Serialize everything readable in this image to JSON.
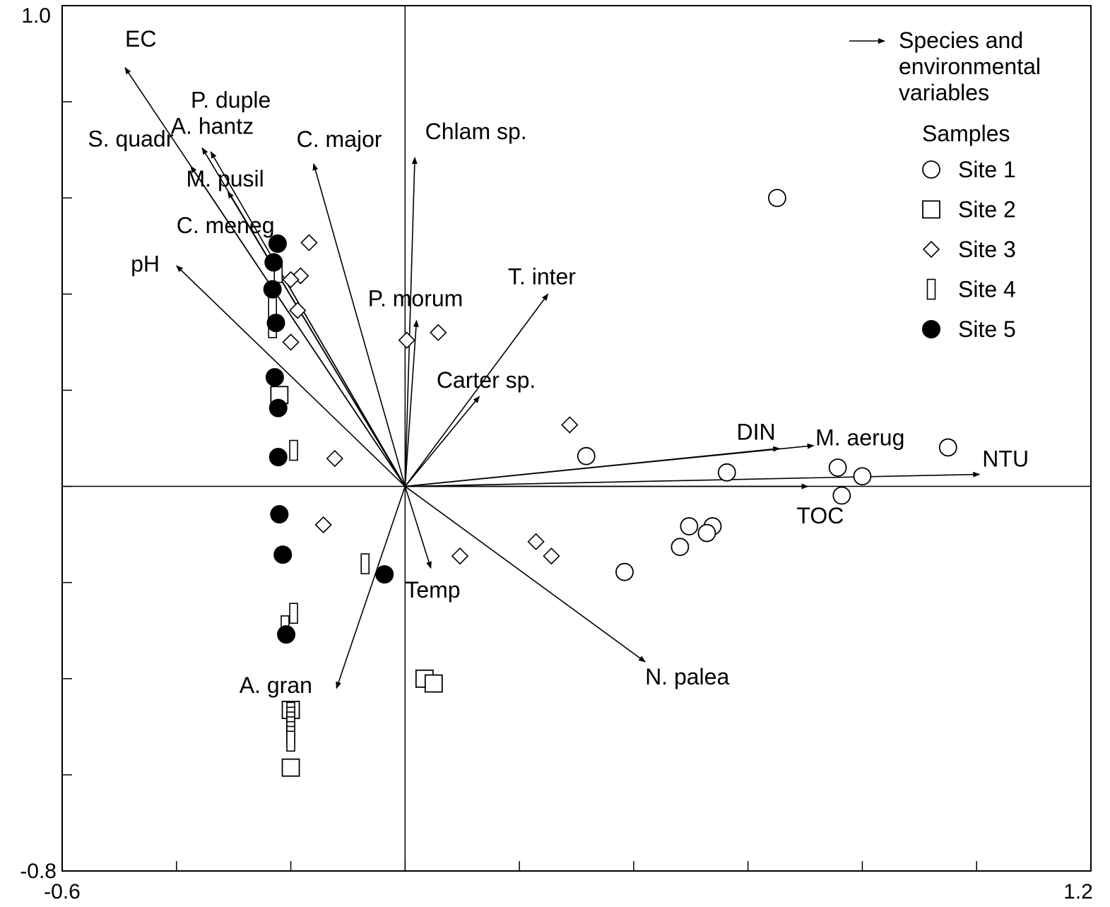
{
  "chart_data": {
    "type": "scatter",
    "title": "",
    "xlabel": "",
    "ylabel": "",
    "xlim": [
      -0.6,
      1.2
    ],
    "ylim": [
      -0.8,
      1.0
    ],
    "x_tick_labels": [
      "-0.6",
      "1.2"
    ],
    "y_tick_labels": [
      "1.0",
      "-0.8"
    ],
    "x_ticks": [
      -0.6,
      -0.4,
      -0.2,
      0.0,
      0.2,
      0.4,
      0.6,
      0.8,
      1.0,
      1.2
    ],
    "y_ticks": [
      1.0,
      0.8,
      0.6,
      0.4,
      0.2,
      0.0,
      -0.2,
      -0.4,
      -0.6,
      -0.8
    ],
    "grid": false,
    "legend_position": "top-right",
    "legend": {
      "arrow_label": [
        "Species and",
        "environmental",
        "variables"
      ],
      "samples_title": "Samples",
      "entries": [
        {
          "label": "Site 1",
          "marker": "circle"
        },
        {
          "label": "Site 2",
          "marker": "square"
        },
        {
          "label": "Site 3",
          "marker": "diamond"
        },
        {
          "label": "Site 4",
          "marker": "rect"
        },
        {
          "label": "Site 5",
          "marker": "filled-circle"
        }
      ]
    },
    "arrows": [
      {
        "label": "EC",
        "x": -0.49,
        "y": 0.871
      },
      {
        "label": "P. duple",
        "x": -0.355,
        "y": 0.704
      },
      {
        "label": "A. hantz",
        "x": -0.34,
        "y": 0.696
      },
      {
        "label": "S. quadr",
        "x": -0.375,
        "y": 0.666
      },
      {
        "label": "M. pusil",
        "x": -0.31,
        "y": 0.613
      },
      {
        "label": "C. meneg",
        "x": -0.235,
        "y": 0.481
      },
      {
        "label": "pH",
        "x": -0.4,
        "y": 0.459
      },
      {
        "label": "C. major",
        "x": -0.16,
        "y": 0.671
      },
      {
        "label": "Chlam sp.",
        "x": 0.017,
        "y": 0.684
      },
      {
        "label": "P. morum",
        "x": 0.02,
        "y": 0.345
      },
      {
        "label": "T. inter",
        "x": 0.25,
        "y": 0.4
      },
      {
        "label": "Carter sp.",
        "x": 0.13,
        "y": 0.187
      },
      {
        "label": "DIN",
        "x": 0.655,
        "y": 0.079
      },
      {
        "label": "M. aerug",
        "x": 0.715,
        "y": 0.085
      },
      {
        "label": "NTU",
        "x": 1.005,
        "y": 0.025
      },
      {
        "label": "TOC",
        "x": 0.705,
        "y": 0.0
      },
      {
        "label": "Temp",
        "x": 0.045,
        "y": -0.17
      },
      {
        "label": "N. palea",
        "x": 0.42,
        "y": -0.365
      },
      {
        "label": "A. gran",
        "x": -0.12,
        "y": -0.42
      }
    ],
    "series": [
      {
        "name": "Site 1",
        "marker": "circle",
        "points": [
          [
            0.651,
            0.6
          ],
          [
            0.317,
            0.063
          ],
          [
            0.563,
            0.029
          ],
          [
            0.757,
            0.039
          ],
          [
            0.8,
            0.021
          ],
          [
            0.764,
            -0.019
          ],
          [
            0.95,
            0.081
          ],
          [
            0.497,
            -0.083
          ],
          [
            0.538,
            -0.083
          ],
          [
            0.528,
            -0.097
          ],
          [
            0.481,
            -0.126
          ],
          [
            0.384,
            -0.178
          ]
        ]
      },
      {
        "name": "Site 2",
        "marker": "square",
        "points": [
          [
            -0.22,
            0.19
          ],
          [
            0.034,
            -0.4
          ],
          [
            0.05,
            -0.41
          ],
          [
            -0.2,
            -0.465
          ],
          [
            -0.2,
            -0.585
          ]
        ]
      },
      {
        "name": "Site 3",
        "marker": "diamond",
        "points": [
          [
            -0.168,
            0.507
          ],
          [
            -0.183,
            0.438
          ],
          [
            -0.2,
            0.43
          ],
          [
            -0.188,
            0.366
          ],
          [
            -0.2,
            0.3
          ],
          [
            0.003,
            0.304
          ],
          [
            0.058,
            0.32
          ],
          [
            0.288,
            0.128
          ],
          [
            -0.123,
            0.058
          ],
          [
            -0.143,
            -0.08
          ],
          [
            0.096,
            -0.145
          ],
          [
            0.229,
            -0.115
          ],
          [
            0.256,
            -0.145
          ]
        ]
      },
      {
        "name": "Site 4",
        "marker": "rect",
        "points": [
          [
            -0.222,
            0.445
          ],
          [
            -0.232,
            0.373
          ],
          [
            -0.232,
            0.33
          ],
          [
            -0.195,
            0.075
          ],
          [
            -0.07,
            -0.161
          ],
          [
            -0.195,
            -0.264
          ],
          [
            -0.21,
            -0.29
          ],
          [
            -0.2,
            -0.47
          ],
          [
            -0.2,
            -0.48
          ],
          [
            -0.2,
            -0.49
          ],
          [
            -0.2,
            -0.5
          ],
          [
            -0.2,
            -0.51
          ],
          [
            -0.2,
            -0.52
          ],
          [
            -0.2,
            -0.53
          ]
        ]
      },
      {
        "name": "Site 5",
        "marker": "filled-circle",
        "points": [
          [
            -0.223,
            0.505
          ],
          [
            -0.23,
            0.466
          ],
          [
            -0.232,
            0.41
          ],
          [
            -0.226,
            0.34
          ],
          [
            -0.228,
            0.227
          ],
          [
            -0.222,
            0.163
          ],
          [
            -0.222,
            0.061
          ],
          [
            -0.22,
            -0.058
          ],
          [
            -0.214,
            -0.142
          ],
          [
            -0.036,
            -0.183
          ],
          [
            -0.208,
            -0.308
          ]
        ]
      }
    ]
  }
}
